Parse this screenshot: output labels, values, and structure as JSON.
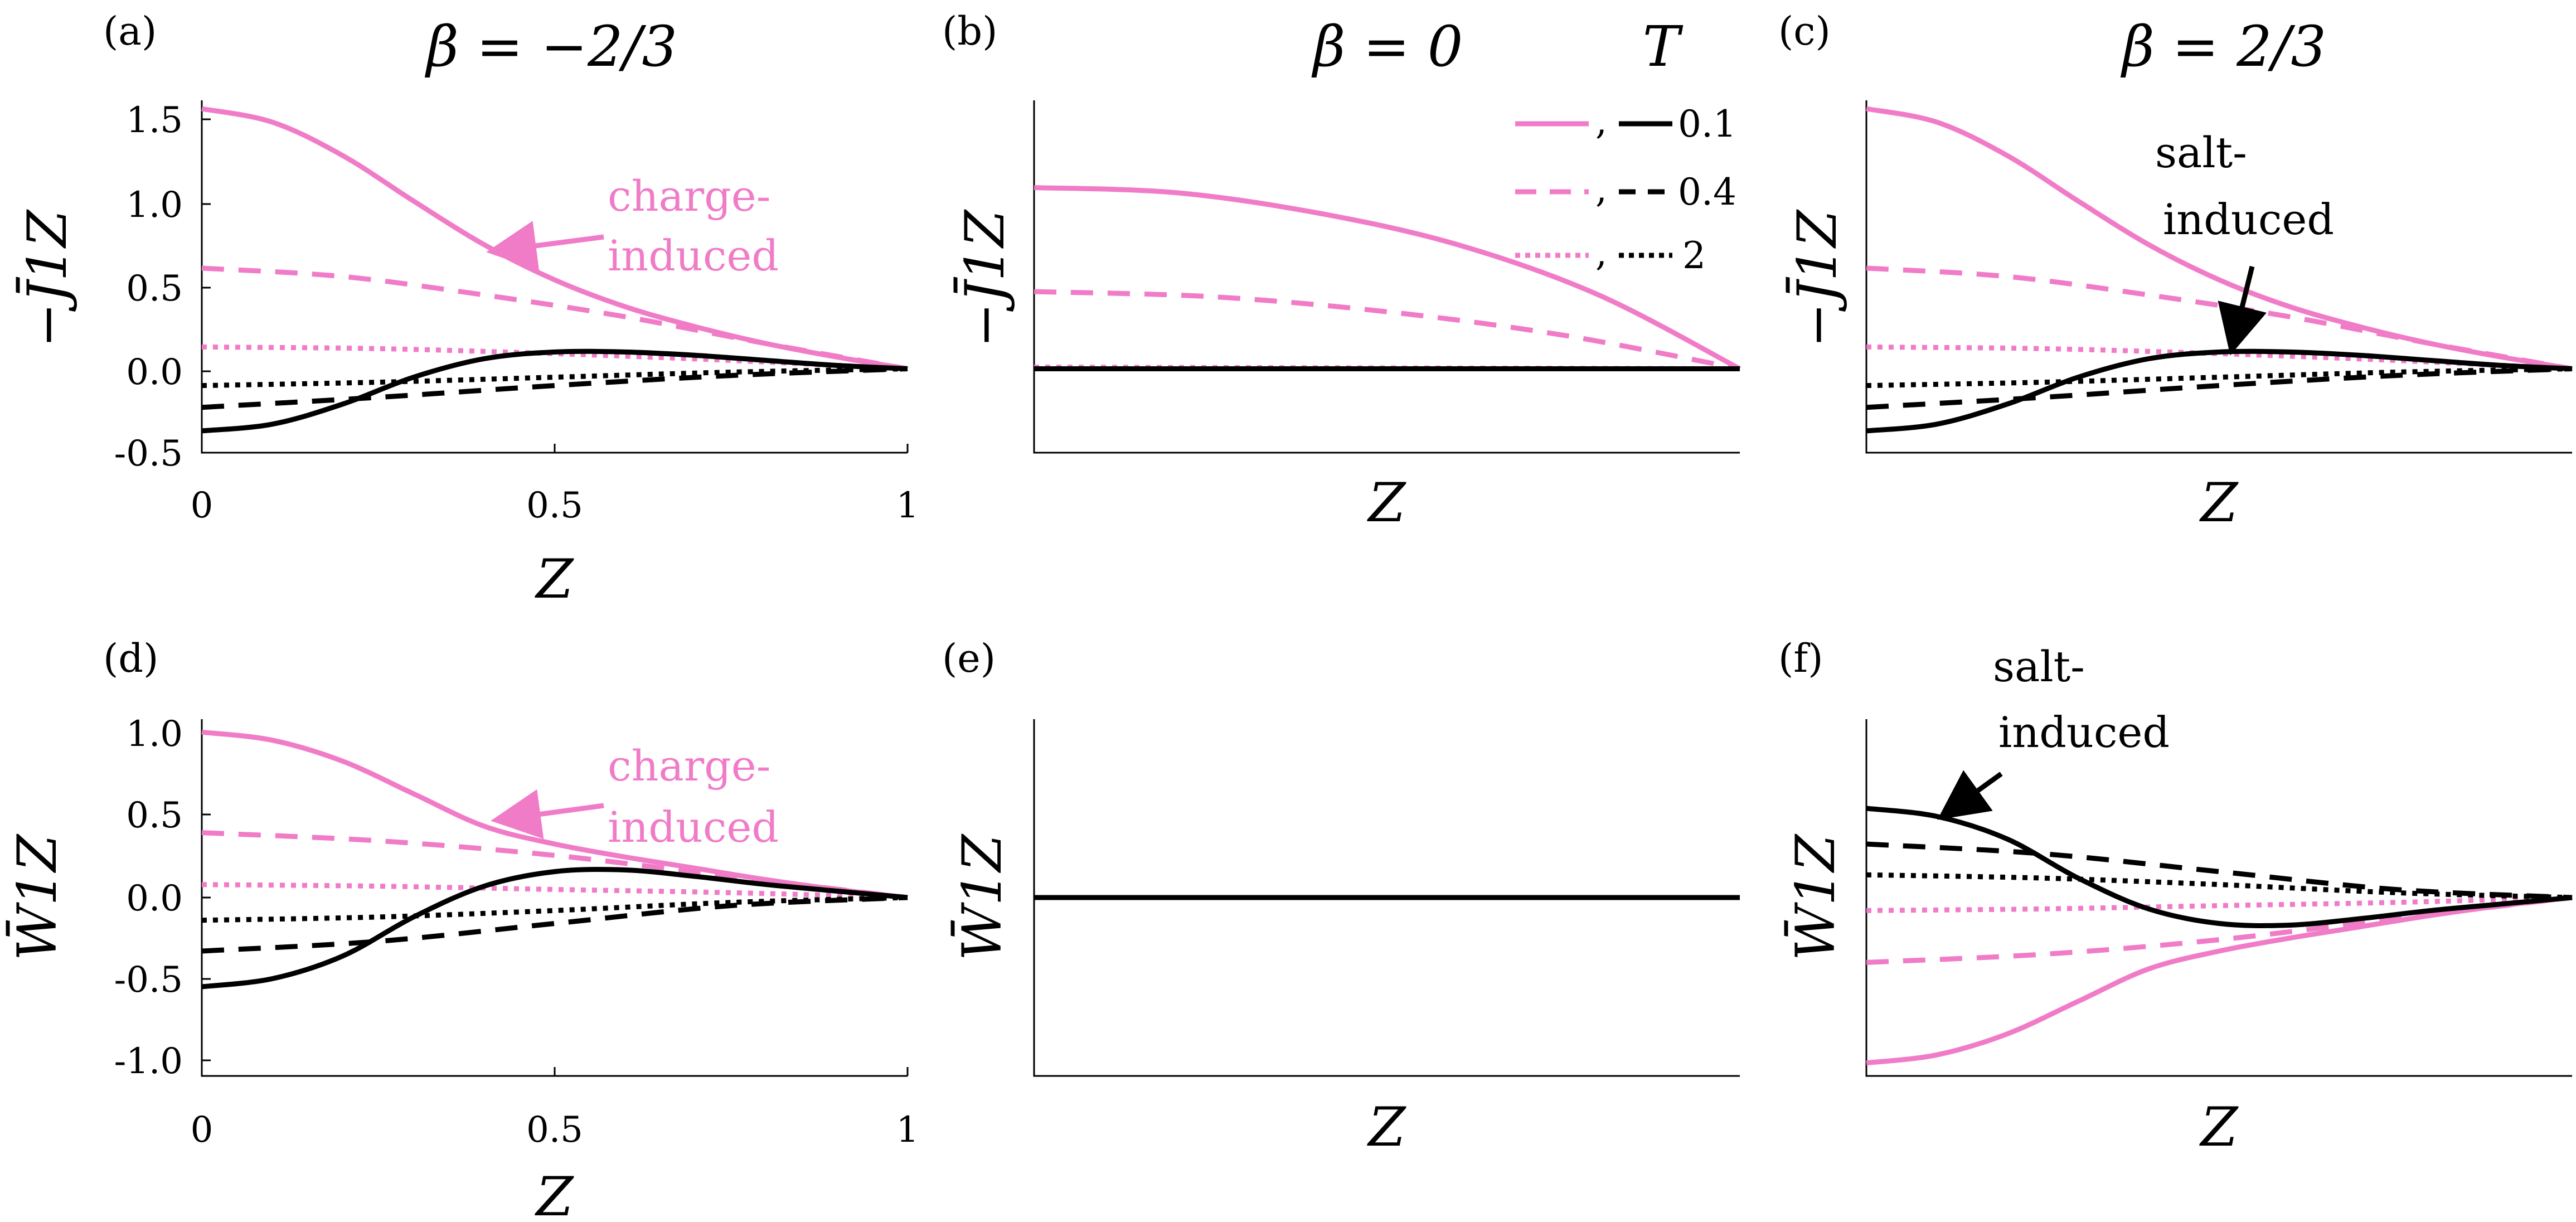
{
  "figure": {
    "colors": {
      "pink": "#f07cc8",
      "black": "#000000"
    },
    "column_titles": [
      "β = −2/3",
      "β = 0",
      "β = 2/3"
    ],
    "legend": {
      "title": "T",
      "entries": [
        {
          "label": "0.1",
          "style": "solid"
        },
        {
          "label": "0.4",
          "style": "dashed"
        },
        {
          "label": "2",
          "style": "dotted"
        }
      ],
      "separator": ","
    }
  },
  "chart_data": [
    {
      "panel": "(a)",
      "type": "line",
      "column_title": "β = −2/3",
      "xlabel": "Z",
      "ylabel": "−J̄1Z",
      "xlim": [
        0,
        1
      ],
      "ylim": [
        -0.5,
        1.6
      ],
      "xticks": [
        "0",
        "0.5",
        "1"
      ],
      "yticks": [
        "-0.5",
        "0.0",
        "0.5",
        "1.0",
        "1.5"
      ],
      "annotation": {
        "text_lines": [
          "charge-",
          "induced"
        ],
        "color": "pink",
        "points_to": [
          0.4,
          0.72
        ]
      },
      "series": [
        {
          "name": "pink T=0.1",
          "color": "pink",
          "style": "solid",
          "x": [
            0,
            0.1,
            0.2,
            0.3,
            0.4,
            0.5,
            0.6,
            0.7,
            0.8,
            0.9,
            1.0
          ],
          "y": [
            1.55,
            1.47,
            1.27,
            1.0,
            0.74,
            0.53,
            0.37,
            0.25,
            0.15,
            0.07,
            0.0
          ]
        },
        {
          "name": "pink T=0.4",
          "color": "pink",
          "style": "dashed",
          "x": [
            0,
            0.2,
            0.4,
            0.6,
            0.8,
            1.0
          ],
          "y": [
            0.6,
            0.55,
            0.44,
            0.31,
            0.15,
            0.0
          ]
        },
        {
          "name": "pink T=2",
          "color": "pink",
          "style": "dotted",
          "x": [
            0,
            0.25,
            0.5,
            0.75,
            1.0
          ],
          "y": [
            0.13,
            0.12,
            0.09,
            0.05,
            0.0
          ]
        },
        {
          "name": "black T=0.1",
          "color": "black",
          "style": "solid",
          "x": [
            0,
            0.1,
            0.2,
            0.3,
            0.4,
            0.5,
            0.6,
            0.7,
            0.8,
            0.9,
            1.0
          ],
          "y": [
            -0.37,
            -0.33,
            -0.21,
            -0.05,
            0.06,
            0.1,
            0.1,
            0.08,
            0.05,
            0.02,
            0.0
          ]
        },
        {
          "name": "black T=0.4",
          "color": "black",
          "style": "dashed",
          "x": [
            0,
            0.25,
            0.5,
            0.75,
            1.0
          ],
          "y": [
            -0.23,
            -0.17,
            -0.1,
            -0.04,
            0.0
          ]
        },
        {
          "name": "black T=2",
          "color": "black",
          "style": "dotted",
          "x": [
            0,
            0.25,
            0.5,
            0.75,
            1.0
          ],
          "y": [
            -0.1,
            -0.08,
            -0.05,
            -0.02,
            0.0
          ]
        }
      ]
    },
    {
      "panel": "(b)",
      "type": "line",
      "column_title": "β = 0",
      "xlabel": "Z",
      "ylabel": "−J̄1Z",
      "xlim": [
        0,
        1
      ],
      "ylim": [
        -0.5,
        1.6
      ],
      "series": [
        {
          "name": "pink T=0.1",
          "color": "pink",
          "style": "solid",
          "x": [
            0,
            0.2,
            0.4,
            0.6,
            0.8,
            1.0
          ],
          "y": [
            1.08,
            1.05,
            0.93,
            0.74,
            0.44,
            0.0
          ]
        },
        {
          "name": "pink T=0.4",
          "color": "pink",
          "style": "dashed",
          "x": [
            0,
            0.25,
            0.5,
            0.75,
            1.0
          ],
          "y": [
            0.46,
            0.43,
            0.34,
            0.2,
            0.0
          ]
        },
        {
          "name": "pink T=2",
          "color": "pink",
          "style": "dotted",
          "x": [
            0,
            1.0
          ],
          "y": [
            0.01,
            0.0
          ]
        },
        {
          "name": "black T=0.1",
          "color": "black",
          "style": "solid",
          "x": [
            0,
            1.0
          ],
          "y": [
            0.0,
            0.0
          ]
        },
        {
          "name": "black T=0.4",
          "color": "black",
          "style": "dashed",
          "x": [
            0,
            1.0
          ],
          "y": [
            0.0,
            0.0
          ]
        },
        {
          "name": "black T=2",
          "color": "black",
          "style": "dotted",
          "x": [
            0,
            1.0
          ],
          "y": [
            0.0,
            0.0
          ]
        }
      ]
    },
    {
      "panel": "(c)",
      "type": "line",
      "column_title": "β = 2/3",
      "xlabel": "Z",
      "ylabel": "−J̄1Z",
      "xlim": [
        0,
        1
      ],
      "ylim": [
        -0.5,
        1.6
      ],
      "annotation": {
        "text_lines": [
          "salt-",
          "induced"
        ],
        "color": "black",
        "points_to": [
          0.5,
          0.1
        ]
      },
      "series": [
        {
          "name": "pink T=0.1",
          "color": "pink",
          "style": "solid",
          "x": [
            0,
            0.1,
            0.2,
            0.3,
            0.4,
            0.5,
            0.6,
            0.7,
            0.8,
            0.9,
            1.0
          ],
          "y": [
            1.55,
            1.47,
            1.27,
            1.0,
            0.74,
            0.53,
            0.37,
            0.25,
            0.15,
            0.07,
            0.0
          ]
        },
        {
          "name": "pink T=0.4",
          "color": "pink",
          "style": "dashed",
          "x": [
            0,
            0.2,
            0.4,
            0.6,
            0.8,
            1.0
          ],
          "y": [
            0.6,
            0.55,
            0.44,
            0.31,
            0.15,
            0.0
          ]
        },
        {
          "name": "pink T=2",
          "color": "pink",
          "style": "dotted",
          "x": [
            0,
            0.25,
            0.5,
            0.75,
            1.0
          ],
          "y": [
            0.13,
            0.12,
            0.09,
            0.05,
            0.0
          ]
        },
        {
          "name": "black T=0.1",
          "color": "black",
          "style": "solid",
          "x": [
            0,
            0.1,
            0.2,
            0.3,
            0.4,
            0.5,
            0.6,
            0.7,
            0.8,
            0.9,
            1.0
          ],
          "y": [
            -0.37,
            -0.33,
            -0.21,
            -0.05,
            0.06,
            0.1,
            0.1,
            0.08,
            0.05,
            0.02,
            0.0
          ]
        },
        {
          "name": "black T=0.4",
          "color": "black",
          "style": "dashed",
          "x": [
            0,
            0.25,
            0.5,
            0.75,
            1.0
          ],
          "y": [
            -0.23,
            -0.17,
            -0.1,
            -0.04,
            0.0
          ]
        },
        {
          "name": "black T=2",
          "color": "black",
          "style": "dotted",
          "x": [
            0,
            0.25,
            0.5,
            0.75,
            1.0
          ],
          "y": [
            -0.1,
            -0.08,
            -0.05,
            -0.02,
            0.0
          ]
        }
      ]
    },
    {
      "panel": "(d)",
      "type": "line",
      "xlabel": "Z",
      "ylabel": "W̄1Z",
      "xlim": [
        0,
        1
      ],
      "ylim": [
        -1.1,
        1.1
      ],
      "xticks": [
        "0",
        "0.5",
        "1"
      ],
      "yticks": [
        "-1.0",
        "-0.5",
        "0.0",
        "0.5",
        "1.0"
      ],
      "annotation": {
        "text_lines": [
          "charge-",
          "induced"
        ],
        "color": "pink",
        "points_to": [
          0.42,
          0.42
        ]
      },
      "series": [
        {
          "name": "pink T=0.1",
          "color": "pink",
          "style": "solid",
          "x": [
            0,
            0.1,
            0.2,
            0.3,
            0.4,
            0.5,
            0.6,
            0.7,
            0.8,
            0.9,
            1.0
          ],
          "y": [
            1.02,
            0.97,
            0.84,
            0.64,
            0.44,
            0.33,
            0.25,
            0.18,
            0.11,
            0.05,
            0.0
          ]
        },
        {
          "name": "pink T=0.4",
          "color": "pink",
          "style": "dashed",
          "x": [
            0,
            0.25,
            0.5,
            0.75,
            1.0
          ],
          "y": [
            0.4,
            0.35,
            0.26,
            0.13,
            0.0
          ]
        },
        {
          "name": "pink T=2",
          "color": "pink",
          "style": "dotted",
          "x": [
            0,
            0.25,
            0.5,
            0.75,
            1.0
          ],
          "y": [
            0.08,
            0.07,
            0.05,
            0.03,
            0.0
          ]
        },
        {
          "name": "black T=0.1",
          "color": "black",
          "style": "solid",
          "x": [
            0,
            0.1,
            0.2,
            0.3,
            0.4,
            0.5,
            0.6,
            0.7,
            0.8,
            0.9,
            1.0
          ],
          "y": [
            -0.55,
            -0.5,
            -0.36,
            -0.12,
            0.07,
            0.16,
            0.17,
            0.13,
            0.08,
            0.04,
            0.0
          ]
        },
        {
          "name": "black T=0.4",
          "color": "black",
          "style": "dashed",
          "x": [
            0,
            0.25,
            0.5,
            0.75,
            1.0
          ],
          "y": [
            -0.33,
            -0.27,
            -0.16,
            -0.05,
            0.0
          ]
        },
        {
          "name": "black T=2",
          "color": "black",
          "style": "dotted",
          "x": [
            0,
            0.25,
            0.5,
            0.75,
            1.0
          ],
          "y": [
            -0.14,
            -0.12,
            -0.08,
            -0.03,
            0.0
          ]
        }
      ]
    },
    {
      "panel": "(e)",
      "type": "line",
      "xlabel": "Z",
      "ylabel": "W̄1Z",
      "xlim": [
        0,
        1
      ],
      "ylim": [
        -1.1,
        1.1
      ],
      "series": [
        {
          "name": "pink T=0.1",
          "color": "pink",
          "style": "solid",
          "x": [
            0,
            1.0
          ],
          "y": [
            0.0,
            0.0
          ]
        },
        {
          "name": "pink T=0.4",
          "color": "pink",
          "style": "dashed",
          "x": [
            0,
            1.0
          ],
          "y": [
            0.0,
            0.0
          ]
        },
        {
          "name": "pink T=2",
          "color": "pink",
          "style": "dotted",
          "x": [
            0,
            1.0
          ],
          "y": [
            0.0,
            0.0
          ]
        },
        {
          "name": "black T=0.1",
          "color": "black",
          "style": "solid",
          "x": [
            0,
            1.0
          ],
          "y": [
            0.0,
            0.0
          ]
        },
        {
          "name": "black T=0.4",
          "color": "black",
          "style": "dashed",
          "x": [
            0,
            1.0
          ],
          "y": [
            0.0,
            0.0
          ]
        },
        {
          "name": "black T=2",
          "color": "black",
          "style": "dotted",
          "x": [
            0,
            1.0
          ],
          "y": [
            0.0,
            0.0
          ]
        }
      ]
    },
    {
      "panel": "(f)",
      "type": "line",
      "xlabel": "Z",
      "ylabel": "W̄1Z",
      "xlim": [
        0,
        1
      ],
      "ylim": [
        -1.1,
        1.1
      ],
      "annotation": {
        "text_lines": [
          "salt-",
          "induced"
        ],
        "color": "black",
        "points_to": [
          0.1,
          0.52
        ]
      },
      "series": [
        {
          "name": "pink T=0.1",
          "color": "pink",
          "style": "solid",
          "x": [
            0,
            0.1,
            0.2,
            0.3,
            0.4,
            0.5,
            0.6,
            0.7,
            0.8,
            0.9,
            1.0
          ],
          "y": [
            -1.02,
            -0.97,
            -0.84,
            -0.64,
            -0.44,
            -0.33,
            -0.25,
            -0.18,
            -0.11,
            -0.05,
            0.0
          ]
        },
        {
          "name": "pink T=0.4",
          "color": "pink",
          "style": "dashed",
          "x": [
            0,
            0.25,
            0.5,
            0.75,
            1.0
          ],
          "y": [
            -0.4,
            -0.35,
            -0.26,
            -0.13,
            0.0
          ]
        },
        {
          "name": "pink T=2",
          "color": "pink",
          "style": "dotted",
          "x": [
            0,
            0.25,
            0.5,
            0.75,
            1.0
          ],
          "y": [
            -0.08,
            -0.07,
            -0.05,
            -0.03,
            0.0
          ]
        },
        {
          "name": "black T=0.1",
          "color": "black",
          "style": "solid",
          "x": [
            0,
            0.1,
            0.2,
            0.3,
            0.4,
            0.5,
            0.6,
            0.7,
            0.8,
            0.9,
            1.0
          ],
          "y": [
            0.55,
            0.5,
            0.36,
            0.12,
            -0.07,
            -0.16,
            -0.17,
            -0.13,
            -0.08,
            -0.04,
            0.0
          ]
        },
        {
          "name": "black T=0.4",
          "color": "black",
          "style": "dashed",
          "x": [
            0,
            0.25,
            0.5,
            0.75,
            1.0
          ],
          "y": [
            0.33,
            0.27,
            0.16,
            0.05,
            0.0
          ]
        },
        {
          "name": "black T=2",
          "color": "black",
          "style": "dotted",
          "x": [
            0,
            0.25,
            0.5,
            0.75,
            1.0
          ],
          "y": [
            0.14,
            0.12,
            0.08,
            0.03,
            0.0
          ]
        }
      ]
    }
  ]
}
